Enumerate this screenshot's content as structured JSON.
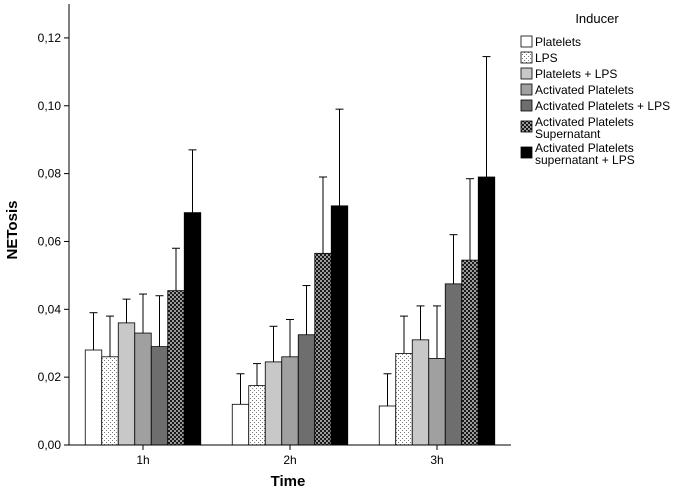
{
  "chart_data": {
    "type": "bar",
    "title": "",
    "xlabel": "Time",
    "ylabel": "NETosis",
    "categories": [
      "1h",
      "2h",
      "3h"
    ],
    "ylim": [
      0,
      0.13
    ],
    "yticks": [
      0.0,
      0.02,
      0.04,
      0.06,
      0.08,
      0.1,
      0.12
    ],
    "ytick_labels": [
      "0,00",
      "0,02",
      "0,04",
      "0,06",
      "0,08",
      "0,10",
      "0,12"
    ],
    "grid": false,
    "error_bars": true,
    "legend": {
      "title": "Inducer",
      "placement": "right"
    },
    "series": [
      {
        "name": "Platelets",
        "label_lines": [
          "Platelets"
        ],
        "values": [
          0.028,
          0.012,
          0.0115
        ],
        "err_upper": [
          0.039,
          0.021,
          0.021
        ],
        "fill": "#ffffff",
        "pattern": "none"
      },
      {
        "name": "LPS",
        "label_lines": [
          "LPS"
        ],
        "values": [
          0.026,
          0.0175,
          0.027
        ],
        "err_upper": [
          0.038,
          0.024,
          0.038
        ],
        "fill": "#ffffff",
        "pattern": "dots-light"
      },
      {
        "name": "Platelets + LPS",
        "label_lines": [
          "Platelets + LPS"
        ],
        "values": [
          0.036,
          0.0245,
          0.031
        ],
        "err_upper": [
          0.043,
          0.035,
          0.041
        ],
        "fill": "#c8c8c8",
        "pattern": "none"
      },
      {
        "name": "Activated Platelets",
        "label_lines": [
          "Activated Platelets"
        ],
        "values": [
          0.033,
          0.026,
          0.0255
        ],
        "err_upper": [
          0.0445,
          0.037,
          0.041
        ],
        "fill": "#a0a0a0",
        "pattern": "none"
      },
      {
        "name": "Activated Platelets + LPS",
        "label_lines": [
          "Activated Platelets + LPS"
        ],
        "values": [
          0.029,
          0.0325,
          0.0475
        ],
        "err_upper": [
          0.044,
          0.047,
          0.062
        ],
        "fill": "#6e6e6e",
        "pattern": "none"
      },
      {
        "name": "Activated Platelets Supernatant",
        "label_lines": [
          "Activated Platelets",
          "Supernatant"
        ],
        "values": [
          0.0455,
          0.0565,
          0.0545
        ],
        "err_upper": [
          0.058,
          0.079,
          0.0785
        ],
        "fill": "#2a2a2a",
        "pattern": "checker"
      },
      {
        "name": "Activated Platelets supernatant + LPS",
        "label_lines": [
          "Activated Platelets",
          "supernatant + LPS"
        ],
        "values": [
          0.0685,
          0.0705,
          0.079
        ],
        "err_upper": [
          0.087,
          0.099,
          0.1145
        ],
        "fill": "#000000",
        "pattern": "none"
      }
    ]
  }
}
